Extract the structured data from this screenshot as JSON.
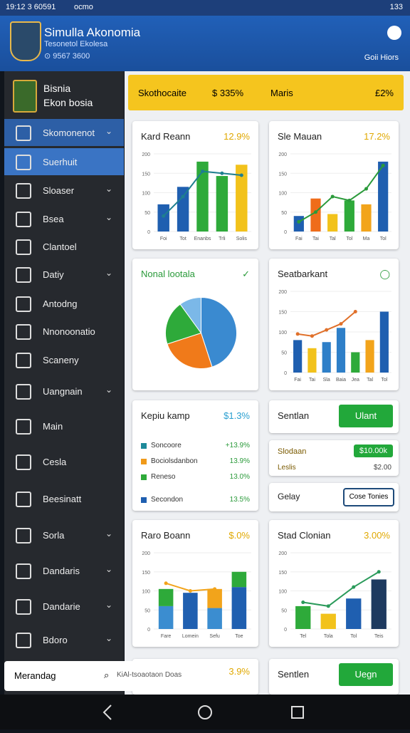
{
  "status": {
    "time": "19:12 3 60591",
    "app": "ocmo",
    "battery": "133"
  },
  "header": {
    "title": "Simulla Akonomia",
    "subtitle": "Tesonetol Ekolesa",
    "meta": "⊙ 9567 3600",
    "action": "Goii Hiors"
  },
  "sidebar": {
    "brand_line1": "Bisnia",
    "brand_line2": "Ekon bosia",
    "items": [
      {
        "label": "Skomonenot",
        "expand": true,
        "selected": true
      },
      {
        "label": "Suerhuit",
        "expand": false,
        "selected": true
      },
      {
        "label": "Sloaser",
        "expand": true,
        "selected": false
      },
      {
        "label": "Bsea",
        "expand": true,
        "selected": false
      },
      {
        "label": "Clantoel",
        "expand": false,
        "selected": false
      },
      {
        "label": "Datiy",
        "expand": true,
        "selected": false
      },
      {
        "label": "Antodng",
        "expand": false,
        "selected": false
      },
      {
        "label": "Nnonoonatio",
        "expand": false,
        "selected": false
      },
      {
        "label": "Scaneny",
        "expand": false,
        "selected": false
      },
      {
        "label": "Uangnain",
        "expand": true,
        "selected": false
      },
      {
        "label": "Main",
        "expand": false,
        "selected": false
      },
      {
        "label": "Cesla",
        "expand": false,
        "selected": false
      },
      {
        "label": "Beesinatt",
        "expand": false,
        "selected": false
      },
      {
        "label": "Sorla",
        "expand": true,
        "selected": false
      },
      {
        "label": "Dandaris",
        "expand": true,
        "selected": false
      },
      {
        "label": "Dandarie",
        "expand": true,
        "selected": false
      },
      {
        "label": "Bdoro",
        "expand": true,
        "selected": false
      }
    ],
    "search": "Merandag",
    "search_hint": "KiAl-tsoaotaon Doas"
  },
  "banner": {
    "label": "Skothocaite",
    "value": "$ 335%",
    "label2": "Maris",
    "value2": "£2%"
  },
  "cards": [
    {
      "title": "Kard Reann",
      "value": "12.9%",
      "chart": {
        "kind": "bar",
        "categories": [
          "Foi",
          "Tot",
          "Enanbs",
          "Trli",
          "Solis"
        ],
        "ylim": [
          0,
          200
        ],
        "yticks": [
          0,
          50,
          100,
          150,
          200
        ],
        "series": [
          {
            "type": "bar",
            "colors": [
              "#1f5fb0",
              "#1f5fb0",
              "#2eaa3a",
              "#2eaa3a",
              "#f2c21b"
            ],
            "values": [
              70,
              115,
              180,
              143,
              172
            ]
          },
          {
            "type": "line",
            "color": "#1e7f8f",
            "values": [
              40,
              90,
              155,
              150,
              145
            ]
          }
        ]
      }
    },
    {
      "title": "Sle Mauan",
      "value": "17.2%",
      "chart": {
        "kind": "bar",
        "categories": [
          "Fai",
          "Tai",
          "Tal",
          "Tol",
          "Ma",
          "Tol"
        ],
        "ylim": [
          0,
          200
        ],
        "yticks": [
          0,
          50,
          100,
          150,
          200
        ],
        "series": [
          {
            "type": "bar",
            "colors": [
              "#1f5fb0",
              "#ef6c1a",
              "#f2c21b",
              "#2eaa3a",
              "#f2a41b",
              "#1f5fb0"
            ],
            "values": [
              40,
              85,
              45,
              80,
              70,
              180
            ]
          },
          {
            "type": "line",
            "color": "#2a9a3a",
            "values": [
              25,
              50,
              90,
              80,
              110,
              170
            ]
          }
        ]
      }
    },
    {
      "title": "Nonal lootala",
      "chart": {
        "kind": "pie",
        "series": [
          {
            "colors": [
              "#3a8ad0",
              "#f07a1a",
              "#2eaa3a",
              "#7bb8e8"
            ],
            "values": [
              45,
              25,
              20,
              10
            ]
          }
        ]
      }
    },
    {
      "title": "Seatbarkant",
      "chart": {
        "kind": "bar",
        "categories": [
          "Fai",
          "Tai",
          "Sla",
          "Baia",
          "Jea",
          "Tal",
          "Tol"
        ],
        "ylim": [
          0,
          200
        ],
        "yticks": [
          0,
          50,
          100,
          150,
          200
        ],
        "series": [
          {
            "type": "bar",
            "colors": [
              "#1f5fb0",
              "#f2c21b",
              "#2e7fc8",
              "#2e7fc8",
              "#2eaa3a",
              "#f2a41b",
              "#1f5fb0"
            ],
            "values": [
              80,
              60,
              75,
              110,
              50,
              80,
              150
            ]
          },
          {
            "type": "line",
            "color": "#e0702a",
            "values": [
              95,
              90,
              105,
              120,
              150,
              null,
              null
            ]
          }
        ]
      }
    },
    {
      "title": "Kepiu kamp",
      "value": "$1.3%",
      "rows": [
        {
          "label": "Soncoore",
          "value": "+13.9%",
          "color": "#1e8a9a"
        },
        {
          "label": "Bociolsdanbon",
          "value": "13.9%",
          "color": "#f09a1a"
        },
        {
          "label": "Reneso",
          "value": "13.0%",
          "color": "#2eaa3a"
        },
        {
          "label": "Secondon",
          "value": "13.5%",
          "color": "#1f5fb0"
        }
      ]
    },
    {
      "title": "Sentlan",
      "button": "Ulant"
    },
    {
      "title": "Slodaan",
      "pill": "$10.00k",
      "sub": "Leslis",
      "sub_value": "$2.00"
    },
    {
      "title": "Gelay",
      "button": "Cose Tonies"
    },
    {
      "title": "Raro Boann",
      "value": "$.0%",
      "chart": {
        "kind": "bar",
        "stacked": true,
        "categories": [
          "Fare",
          "Lomein",
          "Sefu",
          "Toe"
        ],
        "ylim": [
          0,
          200
        ],
        "yticks": [
          0,
          50,
          100,
          150,
          200
        ],
        "series": [
          {
            "type": "bar",
            "colors": [
              "#3b8dd0",
              "#1f5fb0",
              "#3b8dd0",
              "#1f5fb0"
            ],
            "values": [
              60,
              95,
              55,
              110
            ]
          },
          {
            "type": "bar",
            "colors": [
              "#2eaa3a",
              "#2eaa3a",
              "#f2a41b",
              "#2eaa3a"
            ],
            "values": [
              45,
              0,
              50,
              40
            ]
          },
          {
            "type": "line",
            "color": "#f2a41b",
            "values": [
              120,
              100,
              105,
              null
            ]
          }
        ]
      }
    },
    {
      "title": "Stad Clonian",
      "value": "3.00%",
      "chart": {
        "kind": "bar",
        "categories": [
          "Tel",
          "Tola",
          "Tol",
          "Teis"
        ],
        "ylim": [
          0,
          200
        ],
        "yticks": [
          0,
          50,
          100,
          150,
          200
        ],
        "series": [
          {
            "type": "bar",
            "colors": [
              "#2eaa3a",
              "#f2c21b",
              "#1f5fb0",
              "#1e3a5f"
            ],
            "values": [
              60,
              40,
              80,
              130
            ]
          },
          {
            "type": "line",
            "color": "#2a9a5a",
            "values": [
              70,
              60,
              110,
              150
            ]
          }
        ]
      }
    },
    {
      "value": "3.9%"
    },
    {
      "title": "Sentlen",
      "button": "Uegn"
    }
  ]
}
